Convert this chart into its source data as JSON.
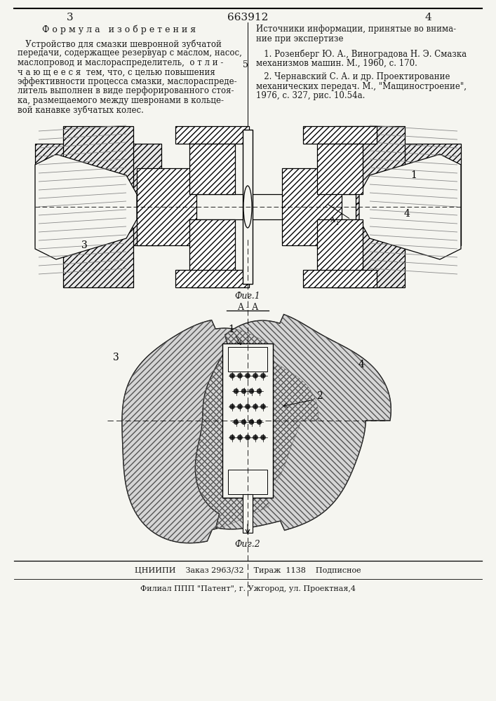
{
  "page_number_left": "3",
  "page_number_right": "4",
  "patent_number": "663912",
  "left_column_title": "Ф о р м у л а   и з о б р е т е н и я",
  "fig1_label": "Фиг.1",
  "fig2_label": "Фиг.2",
  "section_label": "A - A",
  "bottom_text1": "ЦНИИПИ    Заказ 2963/32    Тираж  1138    Подписное",
  "bottom_text2": "Филиал ППП \"Патент\", г. Ужгород, ул. Проектная,4",
  "bg_color": "#f5f5f0",
  "text_color": "#1a1a1a",
  "line_color": "#111111"
}
